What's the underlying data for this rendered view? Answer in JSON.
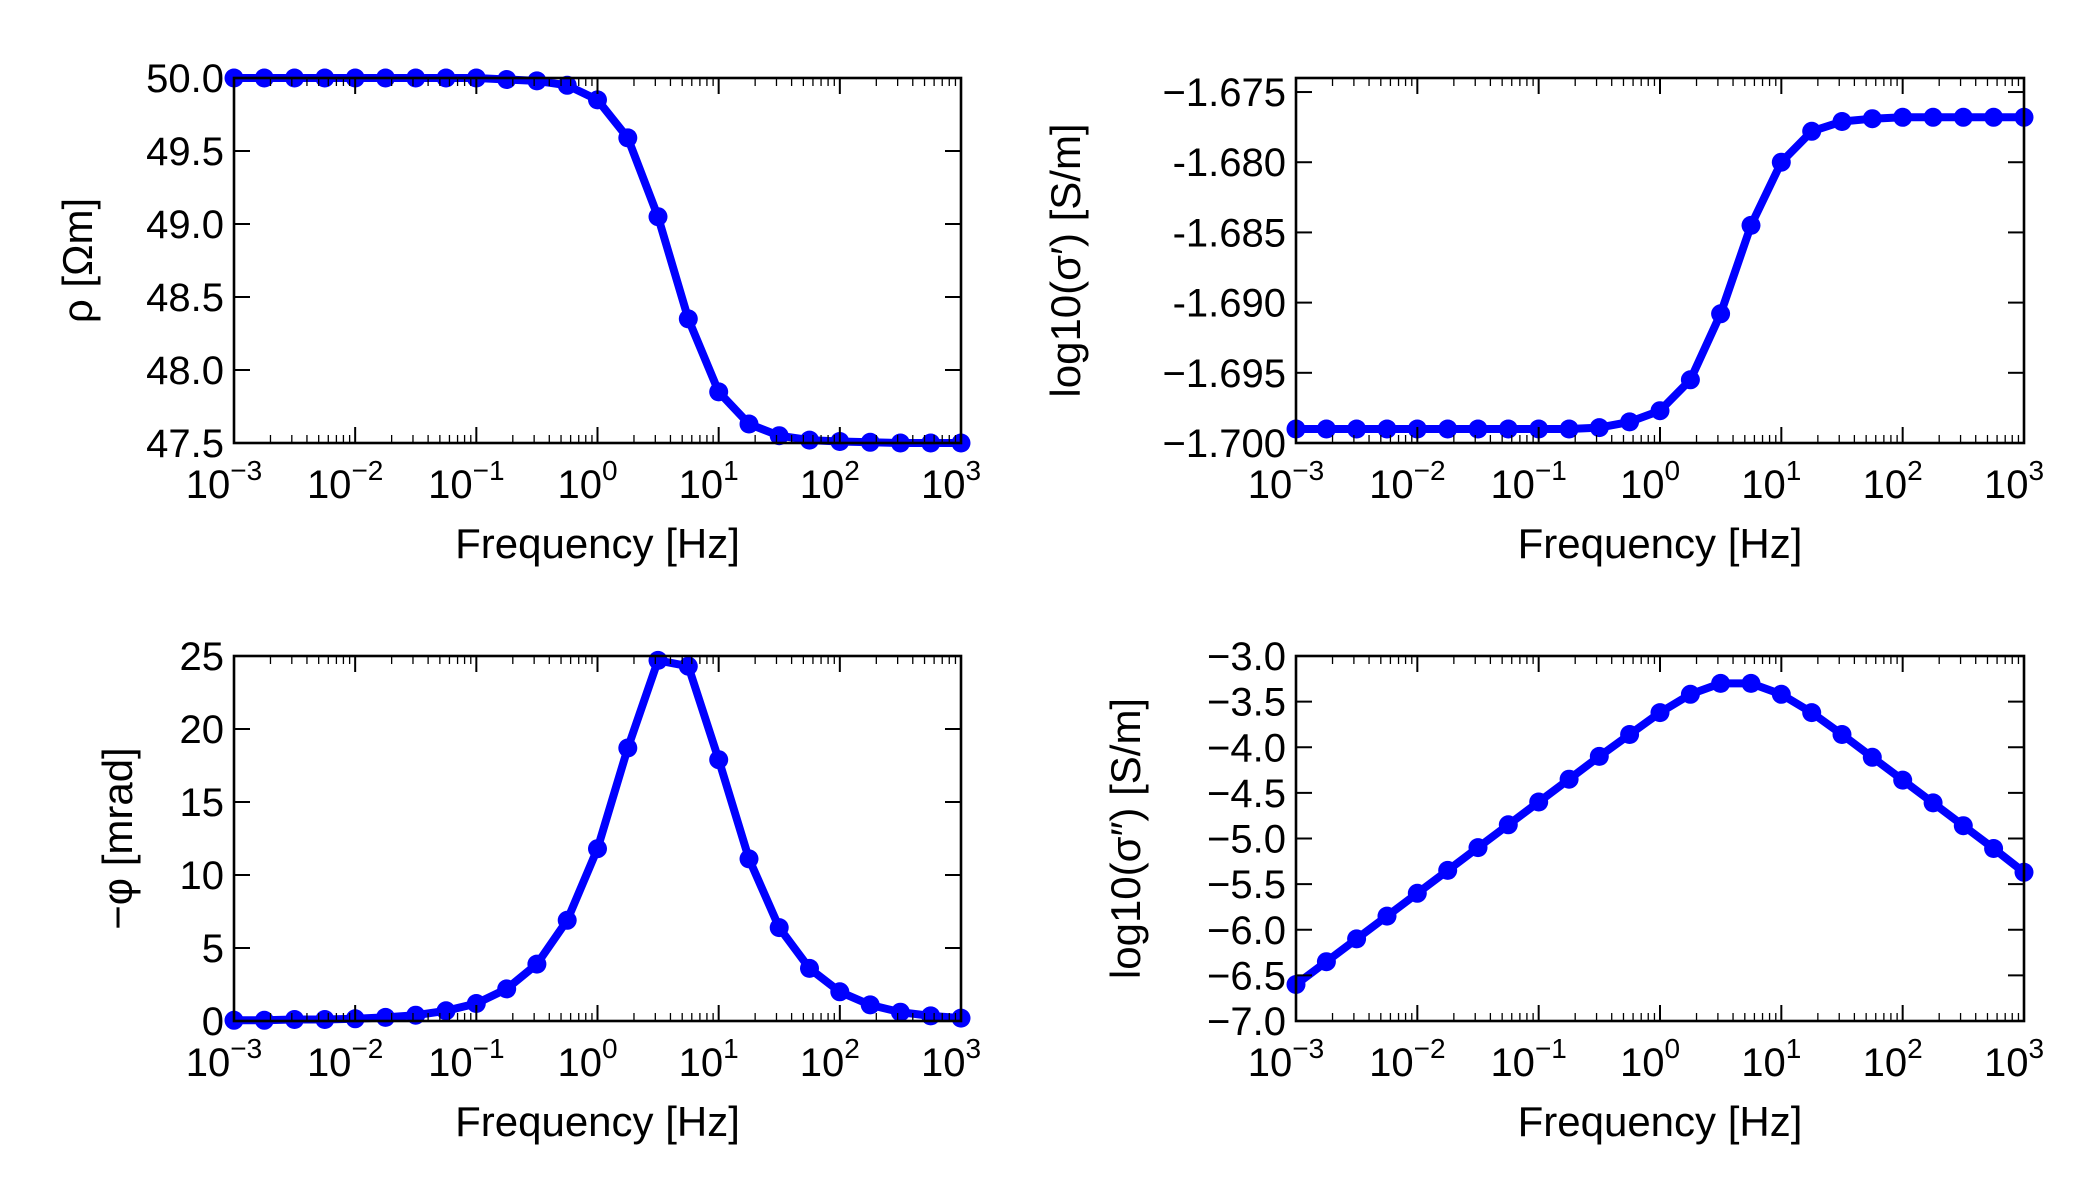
{
  "chart_data": [
    {
      "type": "line",
      "xlabel": "Frequency [Hz]",
      "ylabel": "ρ [Ωm]",
      "xscale": "log",
      "xlim": [
        0.001,
        1000
      ],
      "ylim": [
        47.5,
        50.0
      ],
      "yticks": [
        47.5,
        48.0,
        48.5,
        49.0,
        49.5,
        50.0
      ],
      "ytick_labels": [
        "47.5",
        "48.0",
        "48.5",
        "49.0",
        "49.5",
        "50.0"
      ],
      "grid": false,
      "color": "#0000ff",
      "series": [
        {
          "x": [
            0.001,
            0.00178,
            0.00316,
            0.00562,
            0.01,
            0.0178,
            0.0316,
            0.0562,
            0.1,
            0.178,
            0.316,
            0.562,
            1,
            1.78,
            3.16,
            5.62,
            10,
            17.8,
            31.6,
            56.2,
            100,
            178,
            316,
            562,
            1000
          ],
          "y": [
            50.0,
            50.0,
            50.0,
            50.0,
            50.0,
            50.0,
            50.0,
            50.0,
            50.0,
            49.99,
            49.98,
            49.95,
            49.85,
            49.59,
            49.05,
            48.35,
            47.85,
            47.63,
            47.55,
            47.52,
            47.51,
            47.505,
            47.5,
            47.5,
            47.5
          ]
        }
      ]
    },
    {
      "type": "line",
      "xlabel": "Frequency [Hz]",
      "ylabel": "log10(σ′) [S/m]",
      "xscale": "log",
      "xlim": [
        0.001,
        1000
      ],
      "ylim": [
        -1.7,
        -1.674
      ],
      "yticks": [
        -1.7,
        -1.695,
        -1.69,
        -1.685,
        -1.68,
        -1.675
      ],
      "ytick_labels": [
        "−1.700",
        "−1.695",
        "-1.690",
        "-1.685",
        "-1.680",
        "−1.675"
      ],
      "grid": false,
      "color": "#0000ff",
      "series": [
        {
          "x": [
            0.001,
            0.00178,
            0.00316,
            0.00562,
            0.01,
            0.0178,
            0.0316,
            0.0562,
            0.1,
            0.178,
            0.316,
            0.562,
            1,
            1.78,
            3.16,
            5.62,
            10,
            17.8,
            31.6,
            56.2,
            100,
            178,
            316,
            562,
            1000
          ],
          "y": [
            -1.699,
            -1.699,
            -1.699,
            -1.699,
            -1.699,
            -1.699,
            -1.699,
            -1.699,
            -1.699,
            -1.699,
            -1.6989,
            -1.6985,
            -1.6977,
            -1.6955,
            -1.6908,
            -1.6845,
            -1.68,
            -1.6778,
            -1.6771,
            -1.6769,
            -1.6768,
            -1.6768,
            -1.6768,
            -1.6768,
            -1.6768
          ]
        }
      ]
    },
    {
      "type": "line",
      "xlabel": "Frequency [Hz]",
      "ylabel": "−φ [mrad]",
      "xscale": "log",
      "xlim": [
        0.001,
        1000
      ],
      "ylim": [
        0,
        25
      ],
      "yticks": [
        0,
        5,
        10,
        15,
        20,
        25
      ],
      "ytick_labels": [
        "0",
        "5",
        "10",
        "15",
        "20",
        "25"
      ],
      "grid": false,
      "color": "#0000ff",
      "series": [
        {
          "x": [
            0.001,
            0.00178,
            0.00316,
            0.00562,
            0.01,
            0.0178,
            0.0316,
            0.0562,
            0.1,
            0.178,
            0.316,
            0.562,
            1,
            1.78,
            3.16,
            5.62,
            10,
            17.8,
            31.6,
            56.2,
            100,
            178,
            316,
            562,
            1000
          ],
          "y": [
            0.05,
            0.05,
            0.1,
            0.1,
            0.15,
            0.25,
            0.4,
            0.7,
            1.2,
            2.2,
            3.9,
            6.9,
            11.8,
            18.7,
            24.7,
            24.3,
            17.9,
            11.1,
            6.4,
            3.6,
            2.0,
            1.1,
            0.6,
            0.35,
            0.2
          ]
        }
      ]
    },
    {
      "type": "line",
      "xlabel": "Frequency [Hz]",
      "ylabel": "log10(σ″) [S/m]",
      "xscale": "log",
      "xlim": [
        0.001,
        1000
      ],
      "ylim": [
        -7.0,
        -3.0
      ],
      "yticks": [
        -7.0,
        -6.5,
        -6.0,
        -5.5,
        -5.0,
        -4.5,
        -4.0,
        -3.5,
        -3.0
      ],
      "ytick_labels": [
        "−7.0",
        "−6.5",
        "−6.0",
        "−5.5",
        "−5.0",
        "−4.5",
        "−4.0",
        "−3.5",
        "−3.0"
      ],
      "grid": false,
      "color": "#0000ff",
      "series": [
        {
          "x": [
            0.001,
            0.00178,
            0.00316,
            0.00562,
            0.01,
            0.0178,
            0.0316,
            0.0562,
            0.1,
            0.178,
            0.316,
            0.562,
            1,
            1.78,
            3.16,
            5.62,
            10,
            17.8,
            31.6,
            56.2,
            100,
            178,
            316,
            562,
            1000
          ],
          "y": [
            -6.6,
            -6.35,
            -6.1,
            -5.85,
            -5.6,
            -5.35,
            -5.1,
            -4.85,
            -4.6,
            -4.35,
            -4.1,
            -3.86,
            -3.62,
            -3.42,
            -3.3,
            -3.3,
            -3.42,
            -3.62,
            -3.86,
            -4.11,
            -4.36,
            -4.61,
            -4.86,
            -5.11,
            -5.37
          ]
        }
      ]
    }
  ]
}
